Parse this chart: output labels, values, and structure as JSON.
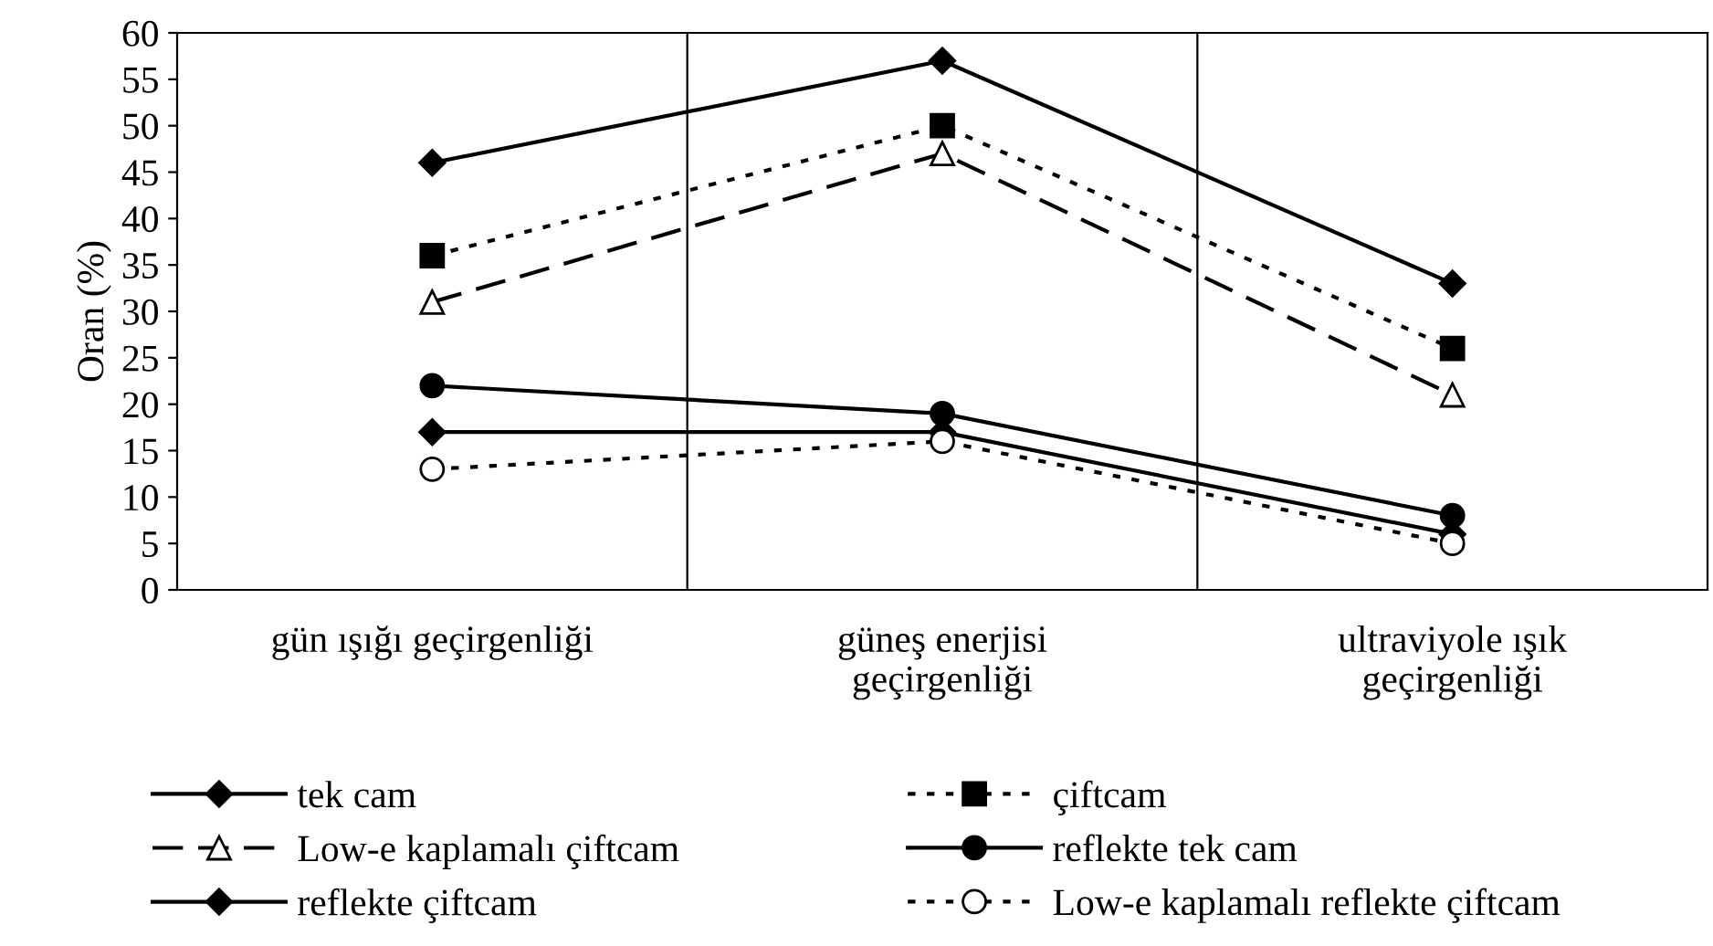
{
  "chart_data": {
    "type": "line",
    "ylabel": "Oran (%)",
    "categories": [
      "gün ışığı geçirgenliği",
      "güneş enerjisi geçirgenliği",
      "ultraviyole ışık geçirgenliği"
    ],
    "series": [
      {
        "name": "tek cam",
        "color": "#000000",
        "marker": "diamond",
        "line_style": "solid",
        "values": [
          46,
          57,
          33
        ]
      },
      {
        "name": "çiftcam",
        "color": "#000000",
        "marker": "square",
        "line_style": "dotted",
        "values": [
          36,
          50,
          26
        ]
      },
      {
        "name": "Low-e kaplamalı çiftcam",
        "color": "#000000",
        "marker": "triangle",
        "line_style": "dashed",
        "values": [
          31,
          47,
          21
        ]
      },
      {
        "name": "reflekte tek cam",
        "color": "#000000",
        "marker": "circle",
        "line_style": "solid",
        "values": [
          22,
          19,
          8
        ]
      },
      {
        "name": "reflekte çiftcam",
        "color": "#000000",
        "marker": "diamond",
        "line_style": "solid",
        "values": [
          17,
          17,
          6
        ]
      },
      {
        "name": "Low-e kaplamalı reflekte çiftcam",
        "color": "#000000",
        "marker": "circle",
        "line_style": "dotted",
        "values": [
          13,
          16,
          5
        ]
      }
    ],
    "ylim": [
      0,
      60
    ],
    "yticks": [
      0,
      5,
      10,
      15,
      20,
      25,
      30,
      35,
      40,
      45,
      50,
      55,
      60
    ],
    "grid": "x",
    "legend": "bottom"
  }
}
